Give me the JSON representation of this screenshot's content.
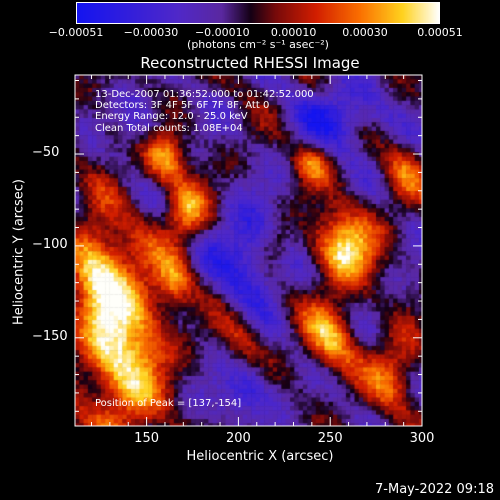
{
  "chart_data": {
    "type": "heatmap",
    "title": "Reconstructed RHESSI Image",
    "xlabel": "Heliocentric X (arcsec)",
    "ylabel": "Heliocentric Y (arcsec)",
    "xlim": [
      111,
      300
    ],
    "ylim": [
      -198,
      -7
    ],
    "xticks": [
      {
        "value": 150,
        "label": "150"
      },
      {
        "value": 200,
        "label": "200"
      },
      {
        "value": 250,
        "label": "250"
      },
      {
        "value": 300,
        "label": "300"
      }
    ],
    "yticks": [
      {
        "value": -50,
        "label": "−50"
      },
      {
        "value": -100,
        "label": "−100"
      },
      {
        "value": -150,
        "label": "−150"
      }
    ],
    "colorbar": {
      "min": -0.00051,
      "max": 0.00051,
      "ticks": [
        {
          "value": -0.00051,
          "label": "−0.00051"
        },
        {
          "value": -0.0003,
          "label": "−0.00030"
        },
        {
          "value": -0.0001,
          "label": "−0.00010"
        },
        {
          "value": 0.0001,
          "label": "0.00010"
        },
        {
          "value": 0.0003,
          "label": "0.00030"
        },
        {
          "value": 0.00051,
          "label": "0.00051"
        }
      ],
      "unit": "(photons cm⁻² s⁻¹ asec⁻²)"
    },
    "annotations": {
      "time_range": "13-Dec-2007 01:36:52.000 to 01:42:52.000",
      "detectors": "Detectors: 3F 4F 5F 6F 7F 8F, Att 0",
      "energy_range": "Energy Range: 12.0 - 25.0 keV",
      "clean_total": "Clean    Total counts: 1.08E+04",
      "peak": "Position of Peak = [137,-154]"
    },
    "sources": [
      {
        "x": 137,
        "y": -154,
        "sx": 16,
        "sy": 36,
        "amp": 1.0
      },
      {
        "x": 122,
        "y": -110,
        "sx": 10,
        "sy": 18,
        "amp": 0.7
      },
      {
        "x": 160,
        "y": -52,
        "sx": 8,
        "sy": 10,
        "amp": 0.75
      },
      {
        "x": 172,
        "y": -82,
        "sx": 8,
        "sy": 12,
        "amp": 0.7
      },
      {
        "x": 165,
        "y": -120,
        "sx": 7,
        "sy": 10,
        "amp": 0.55
      },
      {
        "x": 258,
        "y": -100,
        "sx": 12,
        "sy": 14,
        "amp": 0.95
      },
      {
        "x": 250,
        "y": -150,
        "sx": 10,
        "sy": 14,
        "amp": 0.7
      },
      {
        "x": 240,
        "y": -55,
        "sx": 7,
        "sy": 8,
        "amp": 0.55
      },
      {
        "x": 285,
        "y": -170,
        "sx": 10,
        "sy": 14,
        "amp": 0.6
      },
      {
        "x": 290,
        "y": -60,
        "sx": 8,
        "sy": 12,
        "amp": 0.45
      },
      {
        "x": 200,
        "y": -150,
        "sx": 8,
        "sy": 10,
        "amp": 0.35
      },
      {
        "x": 220,
        "y": -100,
        "sx": 6,
        "sy": 8,
        "amp": 0.35
      },
      {
        "x": 130,
        "y": -40,
        "sx": 8,
        "sy": 8,
        "amp": 0.25
      }
    ],
    "negative_regions": [
      {
        "x": 205,
        "y": -105,
        "sx": 14,
        "sy": 18,
        "amp": -0.6
      },
      {
        "x": 255,
        "y": -30,
        "sx": 16,
        "sy": 12,
        "amp": -0.55
      },
      {
        "x": 205,
        "y": -180,
        "sx": 10,
        "sy": 10,
        "amp": -0.5
      },
      {
        "x": 145,
        "y": -35,
        "sx": 10,
        "sy": 10,
        "amp": -0.35
      }
    ]
  },
  "footer": {
    "timestamp": "7-May-2022 09:18"
  }
}
